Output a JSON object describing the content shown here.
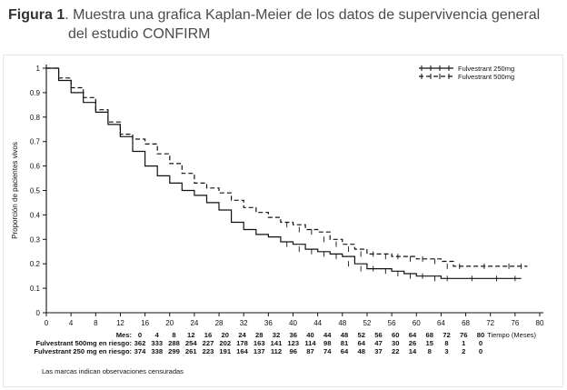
{
  "caption": {
    "figure_label": "Figura 1",
    "text_line1": ". Muestra una grafica Kaplan-Meier de los datos de supervivencia general",
    "text_line2": "del estudio CONFIRM"
  },
  "chart_data": {
    "type": "line",
    "xlabel": "Tiempo (Meses)",
    "ylabel": "Proporción de pacientes vivos",
    "xlim": [
      0,
      80
    ],
    "ylim": [
      0,
      1
    ],
    "x_ticks": [
      "0",
      "4",
      "8",
      "12",
      "16",
      "20",
      "24",
      "28",
      "32",
      "36",
      "40",
      "44",
      "48",
      "52",
      "56",
      "60",
      "64",
      "68",
      "72",
      "76",
      "80"
    ],
    "y_ticks": [
      "0",
      "0.1",
      "0.2",
      "0.3",
      "0.4",
      "0.5",
      "0.6",
      "0.7",
      "0.8",
      "0.9",
      "1"
    ],
    "grid": false,
    "legend_position": "top-right",
    "series": [
      {
        "name": "Fulvestrant 250mg",
        "style": "solid",
        "color": "#111111",
        "points": [
          [
            0,
            1.0
          ],
          [
            2,
            0.95
          ],
          [
            4,
            0.9
          ],
          [
            6,
            0.86
          ],
          [
            8,
            0.82
          ],
          [
            10,
            0.77
          ],
          [
            12,
            0.72
          ],
          [
            14,
            0.66
          ],
          [
            16,
            0.6
          ],
          [
            18,
            0.56
          ],
          [
            20,
            0.53
          ],
          [
            22,
            0.5
          ],
          [
            24,
            0.48
          ],
          [
            26,
            0.45
          ],
          [
            28,
            0.42
          ],
          [
            30,
            0.37
          ],
          [
            32,
            0.34
          ],
          [
            34,
            0.32
          ],
          [
            36,
            0.31
          ],
          [
            38,
            0.29
          ],
          [
            40,
            0.28
          ],
          [
            42,
            0.26
          ],
          [
            44,
            0.25
          ],
          [
            46,
            0.24
          ],
          [
            48,
            0.23
          ],
          [
            50,
            0.2
          ],
          [
            52,
            0.18
          ],
          [
            54,
            0.18
          ],
          [
            56,
            0.17
          ],
          [
            58,
            0.16
          ],
          [
            60,
            0.15
          ],
          [
            62,
            0.15
          ],
          [
            64,
            0.14
          ],
          [
            66,
            0.14
          ],
          [
            70,
            0.14
          ],
          [
            74,
            0.14
          ],
          [
            77,
            0.14
          ]
        ]
      },
      {
        "name": "Fulvestrant 500mg",
        "style": "dashed",
        "color": "#111111",
        "points": [
          [
            0,
            1.0
          ],
          [
            2,
            0.96
          ],
          [
            4,
            0.92
          ],
          [
            6,
            0.88
          ],
          [
            8,
            0.83
          ],
          [
            10,
            0.78
          ],
          [
            12,
            0.73
          ],
          [
            14,
            0.71
          ],
          [
            16,
            0.69
          ],
          [
            18,
            0.65
          ],
          [
            20,
            0.61
          ],
          [
            22,
            0.57
          ],
          [
            24,
            0.53
          ],
          [
            26,
            0.51
          ],
          [
            28,
            0.49
          ],
          [
            30,
            0.46
          ],
          [
            32,
            0.43
          ],
          [
            34,
            0.41
          ],
          [
            36,
            0.39
          ],
          [
            38,
            0.37
          ],
          [
            40,
            0.36
          ],
          [
            42,
            0.34
          ],
          [
            44,
            0.33
          ],
          [
            46,
            0.3
          ],
          [
            48,
            0.28
          ],
          [
            50,
            0.26
          ],
          [
            52,
            0.24
          ],
          [
            54,
            0.24
          ],
          [
            56,
            0.23
          ],
          [
            58,
            0.23
          ],
          [
            60,
            0.22
          ],
          [
            62,
            0.22
          ],
          [
            64,
            0.21
          ],
          [
            66,
            0.19
          ],
          [
            68,
            0.19
          ],
          [
            72,
            0.19
          ],
          [
            76,
            0.19
          ],
          [
            78,
            0.19
          ]
        ]
      }
    ],
    "risk_table": {
      "header_label": "Mes:",
      "months": [
        "0",
        "4",
        "8",
        "12",
        "16",
        "20",
        "24",
        "28",
        "32",
        "36",
        "40",
        "44",
        "48",
        "52",
        "56",
        "60",
        "64",
        "68",
        "72",
        "76",
        "80"
      ],
      "rows": [
        {
          "label": "Fulvestrant 500mg en riesgo:",
          "values": [
            "362",
            "333",
            "288",
            "254",
            "227",
            "202",
            "178",
            "163",
            "141",
            "123",
            "114",
            "98",
            "81",
            "64",
            "47",
            "30",
            "26",
            "15",
            "8",
            "1",
            "0"
          ]
        },
        {
          "label": "Fulvestrant 250 mg en riesgo:",
          "values": [
            "374",
            "338",
            "299",
            "261",
            "223",
            "191",
            "164",
            "137",
            "112",
            "96",
            "87",
            "74",
            "64",
            "48",
            "37",
            "22",
            "14",
            "8",
            "3",
            "2",
            "0"
          ]
        }
      ]
    },
    "footnote": "Las marcas indican observaciones censuradas"
  }
}
